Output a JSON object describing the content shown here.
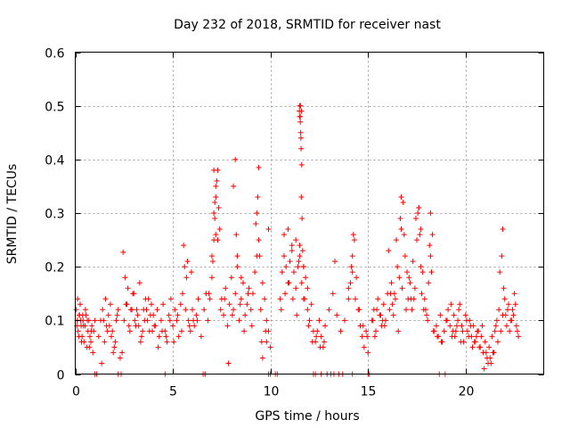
{
  "chart_data": {
    "type": "scatter",
    "title": "Day 232 of 2018, SRMTID for receiver nast",
    "xlabel": "GPS time / hours",
    "ylabel": "SRMTID / TECUs",
    "xlim": [
      0,
      24
    ],
    "ylim": [
      0,
      0.6
    ],
    "xticks": [
      0,
      5,
      10,
      15,
      20
    ],
    "xtick_labels": [
      "0",
      "5",
      "10",
      "15",
      "20"
    ],
    "yticks": [
      0,
      0.1,
      0.2,
      0.3,
      0.4,
      0.5,
      0.6
    ],
    "ytick_labels": [
      "0",
      "0.1",
      "0.2",
      "0.3",
      "0.4",
      "0.5",
      "0.6"
    ],
    "grid": true,
    "marker": "+",
    "color": "#ff0000",
    "series": [
      {
        "name": "SRMTID",
        "x": [
          0.05,
          0.1,
          0.15,
          0.2,
          0.25,
          0.3,
          0.35,
          0.4,
          0.45,
          0.5,
          0.55,
          0.6,
          0.65,
          0.7,
          0.75,
          0.8,
          0.85,
          0.9,
          0.95,
          1.0,
          0.12,
          0.22,
          0.32,
          0.42,
          0.52,
          0.62,
          0.72,
          0.82,
          1.2,
          1.3,
          1.4,
          1.5,
          1.6,
          1.7,
          1.8,
          1.9,
          2.0,
          2.1,
          2.2,
          2.3,
          1.35,
          1.55,
          1.75,
          1.95,
          2.15,
          2.5,
          2.6,
          2.7,
          2.8,
          2.9,
          3.0,
          3.1,
          3.2,
          3.3,
          3.4,
          3.5,
          3.6,
          3.7,
          3.8,
          3.9,
          4.0,
          2.55,
          2.75,
          2.95,
          3.15,
          3.35,
          3.55,
          3.75,
          3.95,
          2.45,
          4.1,
          4.2,
          4.3,
          4.4,
          4.5,
          4.6,
          4.7,
          4.8,
          4.9,
          5.0,
          5.1,
          5.2,
          5.3,
          5.4,
          5.5,
          5.6,
          5.7,
          5.8,
          5.9,
          6.0,
          6.1,
          6.2,
          6.3,
          4.25,
          4.65,
          5.05,
          5.45,
          5.85,
          6.25,
          5.55,
          5.75,
          5.95,
          6.6,
          6.7,
          6.8,
          6.9,
          7.0,
          7.05,
          7.1,
          7.15,
          7.2,
          7.25,
          7.3,
          7.35,
          7.4,
          7.0,
          7.1,
          7.2,
          7.3,
          7.1,
          7.15,
          7.2,
          7.5,
          7.6,
          7.7,
          7.8,
          7.9,
          8.0,
          8.1,
          8.2,
          8.3,
          8.4,
          8.5,
          8.6,
          8.7,
          8.8,
          8.9,
          9.0,
          8.2,
          8.25,
          8.3,
          8.1,
          8.5,
          7.85,
          9.1,
          9.2,
          9.3,
          9.4,
          9.5,
          9.6,
          9.7,
          9.8,
          9.9,
          10.0,
          9.3,
          9.35,
          9.4,
          9.25,
          9.45,
          9.9,
          9.8,
          9.6,
          10.5,
          10.6,
          10.7,
          10.8,
          10.9,
          11.0,
          11.1,
          11.2,
          11.3,
          11.4,
          11.5,
          11.6,
          11.7,
          11.8,
          11.9,
          12.0,
          12.1,
          12.2,
          12.3,
          10.7,
          10.9,
          11.1,
          11.3,
          11.5,
          11.7,
          11.9,
          11.5,
          11.52,
          11.55,
          11.57,
          11.6,
          11.48,
          11.53,
          11.58,
          11.62,
          11.56,
          11.5,
          11.54,
          11.59,
          11.65,
          11.45,
          11.7,
          12.4,
          12.5,
          12.6,
          12.7,
          12.8,
          13.0,
          13.2,
          13.4,
          13.6,
          13.8,
          14.0,
          14.1,
          14.2,
          14.3,
          14.4,
          14.5,
          14.6,
          14.7,
          14.8,
          14.9,
          15.0,
          13.3,
          14.15,
          14.25,
          14.0,
          14.2,
          15.2,
          15.3,
          15.4,
          15.5,
          15.6,
          15.7,
          15.8,
          15.9,
          16.0,
          16.1,
          16.2,
          16.3,
          16.4,
          16.5,
          16.6,
          16.7,
          16.8,
          16.9,
          17.0,
          15.35,
          15.75,
          16.15,
          16.55,
          16.95,
          16.05,
          16.45,
          16.65,
          16.7,
          16.85,
          17.1,
          17.2,
          17.3,
          17.4,
          17.5,
          17.6,
          17.7,
          17.8,
          17.9,
          18.0,
          18.1,
          18.2,
          18.3,
          18.4,
          17.55,
          17.65,
          17.6,
          17.7,
          17.75,
          17.95,
          18.15,
          18.25,
          18.2,
          17.25,
          17.45,
          18.5,
          18.6,
          18.7,
          18.8,
          18.9,
          19.0,
          19.1,
          19.2,
          19.3,
          19.4,
          19.5,
          19.6,
          19.7,
          19.8,
          19.9,
          20.0,
          20.1,
          20.2,
          20.3,
          20.4,
          20.5,
          20.6,
          20.7,
          20.8,
          20.9,
          21.0,
          21.1,
          21.2,
          21.3,
          21.4,
          21.5,
          19.25,
          19.65,
          20.05,
          20.45,
          20.85,
          21.25,
          20.95,
          21.05,
          21.15,
          20.75,
          20.65,
          21.35,
          21.6,
          21.7,
          21.8,
          21.9,
          22.0,
          22.1,
          22.2,
          22.3,
          22.4,
          22.5,
          22.6,
          22.7,
          21.75,
          21.95,
          22.15,
          22.35,
          22.55,
          21.85,
          21.9,
          21.65,
          22.25,
          22.45,
          1.0,
          1.1,
          2.2,
          2.35,
          4.6,
          6.55,
          6.65,
          9.9,
          10.0,
          10.25,
          10.35,
          12.2,
          12.3,
          12.6,
          12.9,
          13.1,
          13.25,
          13.5,
          13.7,
          14.2,
          15.0,
          15.05,
          18.65,
          18.95,
          0.08,
          0.18,
          0.28,
          0.38,
          1.45,
          1.65,
          1.85,
          2.05,
          2.4,
          2.65,
          2.85,
          3.05,
          3.25,
          3.45,
          3.65,
          3.85,
          4.05,
          4.45,
          4.85,
          5.25,
          5.65,
          6.05,
          6.45,
          6.85,
          7.45,
          7.65,
          8.05,
          8.45,
          8.65,
          8.85,
          9.05,
          9.55,
          9.75,
          10.55,
          10.75,
          10.95,
          11.15,
          11.35,
          11.75,
          11.95,
          12.15,
          12.35,
          12.55,
          12.75,
          14.35,
          14.55,
          14.75,
          14.95,
          15.25,
          15.45,
          15.65,
          15.85,
          16.25,
          16.35,
          16.75,
          17.05,
          17.15,
          17.35,
          17.85,
          18.05,
          18.35,
          18.55,
          18.75,
          19.05,
          19.35,
          19.45,
          19.55,
          19.75,
          19.85,
          20.15,
          20.25,
          20.35,
          20.55,
          21.45,
          21.55,
          22.05,
          22.65
        ],
        "y": [
          0.12,
          0.1,
          0.08,
          0.11,
          0.13,
          0.09,
          0.07,
          0.1,
          0.06,
          0.09,
          0.11,
          0.05,
          0.08,
          0.1,
          0.07,
          0.06,
          0.09,
          0.04,
          0.08,
          0.1,
          0.14,
          0.11,
          0.06,
          0.09,
          0.12,
          0.1,
          0.05,
          0.08,
          0.07,
          0.1,
          0.12,
          0.06,
          0.09,
          0.11,
          0.13,
          0.08,
          0.05,
          0.1,
          0.12,
          0.03,
          0.02,
          0.14,
          0.09,
          0.04,
          0.11,
          0.1,
          0.13,
          0.16,
          0.08,
          0.12,
          0.15,
          0.09,
          0.11,
          0.17,
          0.07,
          0.12,
          0.14,
          0.1,
          0.08,
          0.13,
          0.11,
          0.18,
          0.09,
          0.15,
          0.12,
          0.06,
          0.1,
          0.14,
          0.08,
          0.227,
          0.09,
          0.12,
          0.07,
          0.1,
          0.13,
          0.08,
          0.06,
          0.11,
          0.14,
          0.09,
          0.12,
          0.1,
          0.07,
          0.13,
          0.15,
          0.2,
          0.18,
          0.1,
          0.08,
          0.12,
          0.09,
          0.11,
          0.14,
          0.05,
          0.07,
          0.06,
          0.08,
          0.09,
          0.1,
          0.24,
          0.21,
          0.19,
          0.12,
          0.15,
          0.1,
          0.14,
          0.18,
          0.21,
          0.25,
          0.29,
          0.33,
          0.36,
          0.38,
          0.31,
          0.27,
          0.22,
          0.3,
          0.35,
          0.25,
          0.38,
          0.32,
          0.26,
          0.14,
          0.11,
          0.16,
          0.09,
          0.13,
          0.18,
          0.12,
          0.15,
          0.2,
          0.1,
          0.14,
          0.17,
          0.11,
          0.13,
          0.16,
          0.12,
          0.4,
          0.26,
          0.22,
          0.35,
          0.18,
          0.02,
          0.15,
          0.19,
          0.22,
          0.25,
          0.12,
          0.17,
          0.14,
          0.1,
          0.08,
          0.05,
          0.3,
          0.33,
          0.385,
          0.28,
          0.22,
          0.27,
          0.06,
          0.03,
          0.14,
          0.19,
          0.22,
          0.2,
          0.17,
          0.21,
          0.23,
          0.19,
          0.16,
          0.2,
          0.24,
          0.17,
          0.14,
          0.18,
          0.12,
          0.1,
          0.13,
          0.08,
          0.06,
          0.26,
          0.27,
          0.24,
          0.25,
          0.22,
          0.2,
          0.16,
          0.5,
          0.48,
          0.45,
          0.42,
          0.39,
          0.49,
          0.47,
          0.33,
          0.29,
          0.44,
          0.48,
          0.5,
          0.49,
          0.23,
          0.21,
          0.2,
          0.08,
          0.1,
          0.07,
          0.05,
          0.09,
          0.12,
          0.15,
          0.11,
          0.08,
          0.1,
          0.14,
          0.17,
          0.22,
          0.25,
          0.18,
          0.12,
          0.09,
          0.07,
          0.05,
          0.08,
          0.04,
          0.21,
          0.2,
          0.26,
          0.16,
          0.19,
          0.1,
          0.12,
          0.08,
          0.14,
          0.11,
          0.09,
          0.13,
          0.1,
          0.15,
          0.12,
          0.17,
          0.11,
          0.14,
          0.2,
          0.18,
          0.27,
          0.32,
          0.22,
          0.19,
          0.07,
          0.1,
          0.15,
          0.08,
          0.12,
          0.23,
          0.25,
          0.29,
          0.33,
          0.26,
          0.18,
          0.14,
          0.21,
          0.16,
          0.25,
          0.31,
          0.27,
          0.19,
          0.14,
          0.11,
          0.17,
          0.22,
          0.26,
          0.08,
          0.3,
          0.26,
          0.31,
          0.2,
          0.15,
          0.12,
          0.24,
          0.19,
          0.3,
          0.12,
          0.29,
          0.09,
          0.07,
          0.11,
          0.06,
          0.08,
          0.1,
          0.12,
          0.09,
          0.07,
          0.11,
          0.08,
          0.1,
          0.13,
          0.09,
          0.06,
          0.11,
          0.08,
          0.1,
          0.07,
          0.09,
          0.06,
          0.08,
          0.05,
          0.07,
          0.04,
          0.06,
          0.03,
          0.05,
          0.02,
          0.04,
          0.08,
          0.13,
          0.12,
          0.1,
          0.06,
          0.09,
          0.03,
          0.01,
          0.04,
          0.02,
          0.05,
          0.08,
          0.07,
          0.1,
          0.12,
          0.08,
          0.11,
          0.14,
          0.09,
          0.13,
          0.1,
          0.12,
          0.15,
          0.09,
          0.07,
          0.19,
          0.16,
          0.12,
          0.1,
          0.13,
          0.22,
          0.27,
          0.06,
          0.08,
          0.11,
          0,
          0,
          0,
          0,
          0,
          0,
          0,
          0,
          0,
          0,
          0,
          0,
          0,
          0,
          0,
          0,
          0,
          0,
          0,
          0,
          0,
          0,
          0,
          0,
          0.09,
          0.07,
          0.1,
          0.11,
          0.1,
          0.08,
          0.07,
          0.06,
          0.04,
          0.13,
          0.12,
          0.1,
          0.09,
          0.08,
          0.12,
          0.11,
          0.09,
          0.08,
          0.1,
          0.11,
          0.12,
          0.1,
          0.07,
          0.15,
          0.12,
          0.14,
          0.11,
          0.13,
          0.08,
          0.15,
          0.09,
          0.06,
          0.08,
          0.12,
          0.15,
          0.17,
          0.14,
          0.11,
          0.14,
          0.09,
          0.06,
          0.07,
          0.05,
          0.06,
          0.14,
          0.12,
          0.09,
          0.07,
          0.1,
          0.12,
          0.11,
          0.09,
          0.13,
          0.15,
          0.16,
          0.14,
          0.17,
          0.14,
          0.12,
          0.1,
          0.08,
          0.07,
          0.06,
          0.1,
          0.08,
          0.07,
          0.09,
          0.06,
          0.08,
          0.07,
          0.09,
          0.05,
          0.07,
          0.04,
          0.09,
          0.11,
          0.08
        ]
      }
    ]
  }
}
